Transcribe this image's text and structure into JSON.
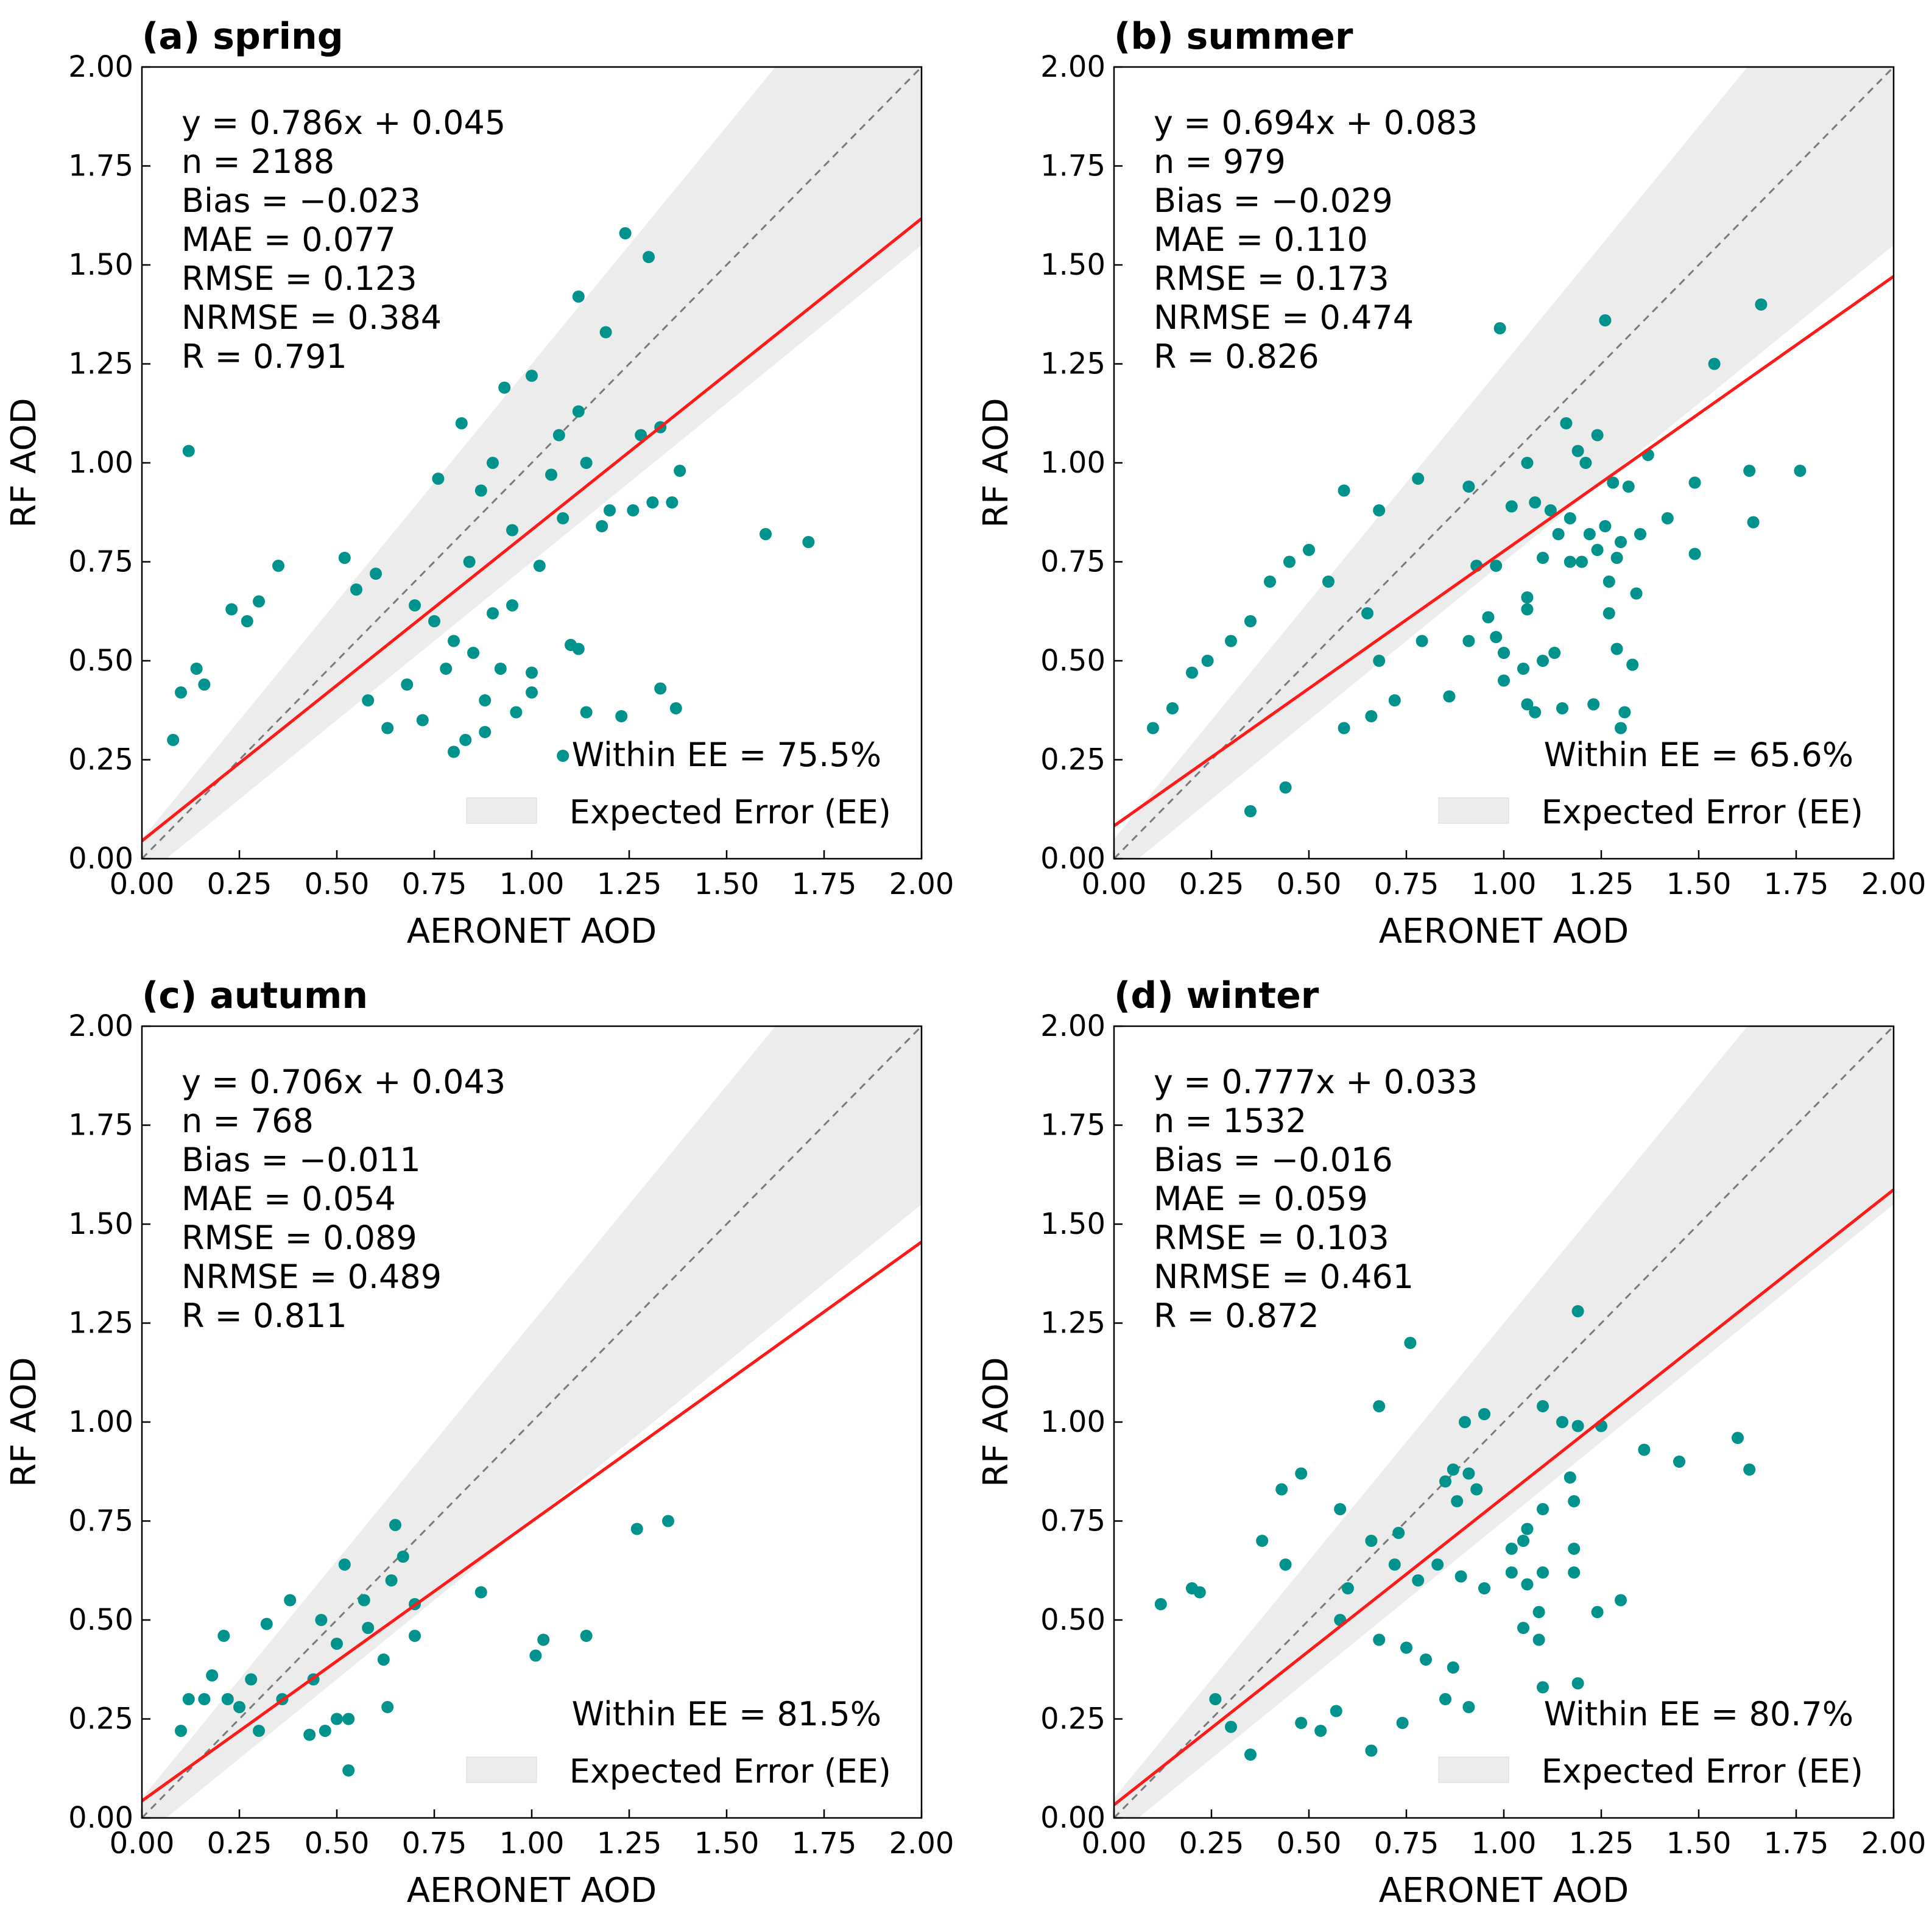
{
  "figure": {
    "domain": "Chart"
  },
  "chart_data": [
    {
      "type": "scatter",
      "title": "(a) spring",
      "xlabel": "AERONET AOD",
      "ylabel": "RF AOD",
      "xlim": [
        0,
        2
      ],
      "ylim": [
        0,
        2
      ],
      "xticks": [
        "0.00",
        "0.25",
        "0.50",
        "0.75",
        "1.00",
        "1.25",
        "1.50",
        "1.75",
        "2.00"
      ],
      "yticks": [
        "0.00",
        "0.25",
        "0.50",
        "0.75",
        "1.00",
        "1.25",
        "1.50",
        "1.75",
        "2.00"
      ],
      "fit": {
        "slope": 0.786,
        "intercept": 0.045
      },
      "stats": [
        "y = 0.786x + 0.045",
        "n = 2188",
        "Bias = −0.023",
        "MAE = 0.077",
        "RMSE = 0.123",
        "NRMSE = 0.384",
        "R = 0.791"
      ],
      "within_ee": "Within EE = 75.5%",
      "legend": "Expected Error (EE)",
      "points": [
        [
          0.12,
          1.03
        ],
        [
          1.24,
          1.58
        ],
        [
          1.3,
          1.52
        ],
        [
          1.12,
          1.42
        ],
        [
          1.19,
          1.33
        ],
        [
          1.0,
          1.22
        ],
        [
          0.93,
          1.19
        ],
        [
          1.12,
          1.13
        ],
        [
          0.82,
          1.1
        ],
        [
          1.33,
          1.09
        ],
        [
          1.28,
          1.07
        ],
        [
          1.07,
          1.07
        ],
        [
          1.14,
          1.0
        ],
        [
          1.38,
          0.98
        ],
        [
          0.9,
          1.0
        ],
        [
          0.76,
          0.96
        ],
        [
          1.05,
          0.97
        ],
        [
          0.87,
          0.93
        ],
        [
          1.2,
          0.88
        ],
        [
          1.26,
          0.88
        ],
        [
          1.31,
          0.9
        ],
        [
          1.36,
          0.9
        ],
        [
          1.18,
          0.84
        ],
        [
          1.6,
          0.82
        ],
        [
          1.71,
          0.8
        ],
        [
          0.35,
          0.74
        ],
        [
          1.08,
          0.86
        ],
        [
          0.95,
          0.83
        ],
        [
          1.02,
          0.74
        ],
        [
          0.84,
          0.75
        ],
        [
          1.1,
          0.54
        ],
        [
          1.12,
          0.53
        ],
        [
          1.33,
          0.43
        ],
        [
          1.37,
          0.38
        ],
        [
          1.23,
          0.36
        ],
        [
          1.14,
          0.37
        ],
        [
          1.0,
          0.42
        ],
        [
          1.0,
          0.47
        ],
        [
          0.92,
          0.48
        ],
        [
          0.88,
          0.4
        ],
        [
          0.88,
          0.32
        ],
        [
          1.08,
          0.26
        ],
        [
          0.83,
          0.3
        ],
        [
          0.8,
          0.27
        ],
        [
          0.96,
          0.37
        ],
        [
          0.72,
          0.35
        ],
        [
          0.63,
          0.33
        ],
        [
          0.23,
          0.63
        ],
        [
          0.27,
          0.6
        ],
        [
          0.3,
          0.65
        ],
        [
          0.55,
          0.68
        ],
        [
          0.6,
          0.72
        ],
        [
          0.52,
          0.76
        ],
        [
          0.7,
          0.64
        ],
        [
          0.75,
          0.6
        ],
        [
          0.8,
          0.55
        ],
        [
          0.85,
          0.52
        ],
        [
          0.9,
          0.62
        ],
        [
          0.95,
          0.64
        ],
        [
          0.78,
          0.48
        ],
        [
          0.68,
          0.44
        ],
        [
          0.58,
          0.4
        ],
        [
          0.14,
          0.48
        ],
        [
          0.1,
          0.42
        ],
        [
          0.16,
          0.44
        ],
        [
          0.08,
          0.3
        ]
      ]
    },
    {
      "type": "scatter",
      "title": "(b) summer",
      "xlabel": "AERONET AOD",
      "ylabel": "RF AOD",
      "xlim": [
        0,
        2
      ],
      "ylim": [
        0,
        2
      ],
      "xticks": [
        "0.00",
        "0.25",
        "0.50",
        "0.75",
        "1.00",
        "1.25",
        "1.50",
        "1.75",
        "2.00"
      ],
      "yticks": [
        "0.00",
        "0.25",
        "0.50",
        "0.75",
        "1.00",
        "1.25",
        "1.50",
        "1.75",
        "2.00"
      ],
      "fit": {
        "slope": 0.694,
        "intercept": 0.083
      },
      "stats": [
        "y = 0.694x + 0.083",
        "n = 979",
        "Bias = −0.029",
        "MAE = 0.110",
        "RMSE = 0.173",
        "NRMSE = 0.474",
        "R = 0.826"
      ],
      "within_ee": "Within EE = 65.6%",
      "legend": "Expected Error (EE)",
      "points": [
        [
          1.66,
          1.4
        ],
        [
          0.99,
          1.34
        ],
        [
          1.26,
          1.36
        ],
        [
          1.54,
          1.25
        ],
        [
          1.16,
          1.1
        ],
        [
          1.19,
          1.03
        ],
        [
          1.21,
          1.0
        ],
        [
          1.28,
          0.95
        ],
        [
          1.37,
          1.02
        ],
        [
          1.24,
          1.07
        ],
        [
          1.06,
          1.0
        ],
        [
          1.63,
          0.98
        ],
        [
          1.76,
          0.98
        ],
        [
          0.78,
          0.96
        ],
        [
          0.91,
          0.94
        ],
        [
          0.59,
          0.93
        ],
        [
          0.68,
          0.88
        ],
        [
          1.02,
          0.89
        ],
        [
          1.08,
          0.9
        ],
        [
          1.12,
          0.88
        ],
        [
          1.17,
          0.86
        ],
        [
          1.32,
          0.94
        ],
        [
          1.42,
          0.86
        ],
        [
          1.49,
          0.95
        ],
        [
          1.64,
          0.85
        ],
        [
          1.35,
          0.82
        ],
        [
          1.26,
          0.84
        ],
        [
          1.22,
          0.82
        ],
        [
          1.14,
          0.82
        ],
        [
          1.1,
          0.76
        ],
        [
          1.24,
          0.78
        ],
        [
          1.3,
          0.8
        ],
        [
          1.49,
          0.77
        ],
        [
          1.17,
          0.75
        ],
        [
          1.2,
          0.75
        ],
        [
          1.29,
          0.76
        ],
        [
          1.34,
          0.67
        ],
        [
          0.98,
          0.74
        ],
        [
          0.93,
          0.74
        ],
        [
          1.06,
          0.66
        ],
        [
          1.06,
          0.63
        ],
        [
          0.96,
          0.61
        ],
        [
          0.98,
          0.56
        ],
        [
          0.91,
          0.55
        ],
        [
          1.0,
          0.52
        ],
        [
          1.05,
          0.48
        ],
        [
          1.1,
          0.5
        ],
        [
          1.13,
          0.52
        ],
        [
          1.27,
          0.7
        ],
        [
          1.27,
          0.62
        ],
        [
          1.29,
          0.53
        ],
        [
          1.33,
          0.49
        ],
        [
          1.31,
          0.37
        ],
        [
          1.3,
          0.33
        ],
        [
          1.23,
          0.39
        ],
        [
          1.15,
          0.38
        ],
        [
          1.08,
          0.37
        ],
        [
          1.06,
          0.39
        ],
        [
          1.0,
          0.45
        ],
        [
          0.86,
          0.41
        ],
        [
          0.79,
          0.55
        ],
        [
          0.68,
          0.5
        ],
        [
          0.65,
          0.62
        ],
        [
          0.55,
          0.7
        ],
        [
          0.45,
          0.75
        ],
        [
          0.5,
          0.78
        ],
        [
          0.4,
          0.7
        ],
        [
          0.35,
          0.6
        ],
        [
          0.3,
          0.55
        ],
        [
          0.24,
          0.5
        ],
        [
          0.2,
          0.47
        ],
        [
          0.15,
          0.38
        ],
        [
          0.1,
          0.33
        ],
        [
          0.72,
          0.4
        ],
        [
          0.66,
          0.36
        ],
        [
          0.59,
          0.33
        ],
        [
          0.44,
          0.18
        ],
        [
          0.35,
          0.12
        ]
      ]
    },
    {
      "type": "scatter",
      "title": "(c) autumn",
      "xlabel": "AERONET AOD",
      "ylabel": "RF AOD",
      "xlim": [
        0,
        2
      ],
      "ylim": [
        0,
        2
      ],
      "xticks": [
        "0.00",
        "0.25",
        "0.50",
        "0.75",
        "1.00",
        "1.25",
        "1.50",
        "1.75",
        "2.00"
      ],
      "yticks": [
        "0.00",
        "0.25",
        "0.50",
        "0.75",
        "1.00",
        "1.25",
        "1.50",
        "1.75",
        "2.00"
      ],
      "fit": {
        "slope": 0.706,
        "intercept": 0.043
      },
      "stats": [
        "y = 0.706x + 0.043",
        "n = 768",
        "Bias = −0.011",
        "MAE = 0.054",
        "RMSE = 0.089",
        "NRMSE = 0.489",
        "R = 0.811"
      ],
      "within_ee": "Within EE = 81.5%",
      "legend": "Expected Error (EE)",
      "points": [
        [
          0.65,
          0.74
        ],
        [
          1.27,
          0.73
        ],
        [
          1.35,
          0.75
        ],
        [
          0.67,
          0.66
        ],
        [
          0.64,
          0.6
        ],
        [
          0.52,
          0.64
        ],
        [
          0.57,
          0.55
        ],
        [
          0.38,
          0.55
        ],
        [
          0.32,
          0.49
        ],
        [
          0.21,
          0.46
        ],
        [
          0.7,
          0.54
        ],
        [
          0.7,
          0.46
        ],
        [
          0.87,
          0.57
        ],
        [
          1.03,
          0.45
        ],
        [
          1.01,
          0.41
        ],
        [
          1.14,
          0.46
        ],
        [
          0.58,
          0.48
        ],
        [
          0.62,
          0.4
        ],
        [
          0.5,
          0.44
        ],
        [
          0.46,
          0.5
        ],
        [
          0.44,
          0.35
        ],
        [
          0.5,
          0.25
        ],
        [
          0.53,
          0.25
        ],
        [
          0.63,
          0.28
        ],
        [
          0.53,
          0.12
        ],
        [
          0.43,
          0.21
        ],
        [
          0.47,
          0.22
        ],
        [
          0.36,
          0.3
        ],
        [
          0.3,
          0.22
        ],
        [
          0.28,
          0.35
        ],
        [
          0.25,
          0.28
        ],
        [
          0.22,
          0.3
        ],
        [
          0.18,
          0.36
        ],
        [
          0.16,
          0.3
        ],
        [
          0.12,
          0.3
        ],
        [
          0.1,
          0.22
        ]
      ]
    },
    {
      "type": "scatter",
      "title": "(d) winter",
      "xlabel": "AERONET AOD",
      "ylabel": "RF AOD",
      "xlim": [
        0,
        2
      ],
      "ylim": [
        0,
        2
      ],
      "xticks": [
        "0.00",
        "0.25",
        "0.50",
        "0.75",
        "1.00",
        "1.25",
        "1.50",
        "1.75",
        "2.00"
      ],
      "yticks": [
        "0.00",
        "0.25",
        "0.50",
        "0.75",
        "1.00",
        "1.25",
        "1.50",
        "1.75",
        "2.00"
      ],
      "fit": {
        "slope": 0.777,
        "intercept": 0.033
      },
      "stats": [
        "y = 0.777x + 0.033",
        "n = 1532",
        "Bias = −0.016",
        "MAE = 0.059",
        "RMSE = 0.103",
        "NRMSE = 0.461",
        "R = 0.872"
      ],
      "within_ee": "Within EE = 80.7%",
      "legend": "Expected Error (EE)",
      "points": [
        [
          0.76,
          1.2
        ],
        [
          1.19,
          1.28
        ],
        [
          0.68,
          1.04
        ],
        [
          0.9,
          1.0
        ],
        [
          0.95,
          1.02
        ],
        [
          1.1,
          1.04
        ],
        [
          1.15,
          1.0
        ],
        [
          1.19,
          0.99
        ],
        [
          1.25,
          0.99
        ],
        [
          1.36,
          0.93
        ],
        [
          1.45,
          0.9
        ],
        [
          1.6,
          0.96
        ],
        [
          1.63,
          0.88
        ],
        [
          0.87,
          0.88
        ],
        [
          0.91,
          0.87
        ],
        [
          0.93,
          0.83
        ],
        [
          0.88,
          0.8
        ],
        [
          0.85,
          0.85
        ],
        [
          1.17,
          0.86
        ],
        [
          1.18,
          0.8
        ],
        [
          0.48,
          0.87
        ],
        [
          0.43,
          0.83
        ],
        [
          0.58,
          0.78
        ],
        [
          0.66,
          0.7
        ],
        [
          0.73,
          0.72
        ],
        [
          0.38,
          0.7
        ],
        [
          0.44,
          0.64
        ],
        [
          0.2,
          0.58
        ],
        [
          0.22,
          0.57
        ],
        [
          0.12,
          0.54
        ],
        [
          1.02,
          0.68
        ],
        [
          1.06,
          0.73
        ],
        [
          1.1,
          0.78
        ],
        [
          1.05,
          0.7
        ],
        [
          1.02,
          0.62
        ],
        [
          1.06,
          0.59
        ],
        [
          1.1,
          0.62
        ],
        [
          1.18,
          0.68
        ],
        [
          1.18,
          0.62
        ],
        [
          1.09,
          0.52
        ],
        [
          1.05,
          0.48
        ],
        [
          1.09,
          0.45
        ],
        [
          1.24,
          0.52
        ],
        [
          1.3,
          0.55
        ],
        [
          0.95,
          0.58
        ],
        [
          0.89,
          0.61
        ],
        [
          0.83,
          0.64
        ],
        [
          0.78,
          0.6
        ],
        [
          0.72,
          0.64
        ],
        [
          0.6,
          0.58
        ],
        [
          0.58,
          0.5
        ],
        [
          0.68,
          0.45
        ],
        [
          0.75,
          0.43
        ],
        [
          0.87,
          0.38
        ],
        [
          0.91,
          0.28
        ],
        [
          0.74,
          0.24
        ],
        [
          0.66,
          0.17
        ],
        [
          0.57,
          0.27
        ],
        [
          0.48,
          0.24
        ],
        [
          0.53,
          0.22
        ],
        [
          1.1,
          0.33
        ],
        [
          1.19,
          0.34
        ],
        [
          0.8,
          0.4
        ],
        [
          0.85,
          0.3
        ],
        [
          0.35,
          0.16
        ],
        [
          0.3,
          0.23
        ],
        [
          0.26,
          0.3
        ]
      ]
    }
  ]
}
